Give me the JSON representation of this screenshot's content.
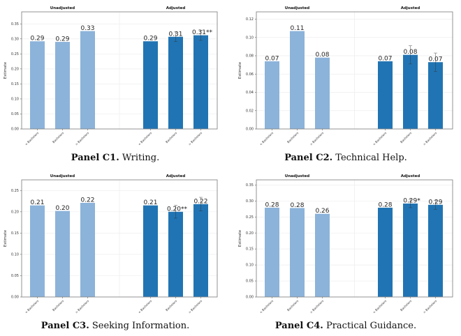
{
  "chart_data": [
    {
      "type": "bar",
      "panel_label": "Panel C1.",
      "panel_title": "Writing.",
      "groups": [
        "Unadjusted",
        "Adjusted"
      ],
      "categories": [
        "< Bachelors",
        "Bachelors",
        "> Bachelors"
      ],
      "ylabel": "Estimate",
      "ylim": [
        0,
        0.39
      ],
      "yticks": [
        "0.00",
        "0.05",
        "0.10",
        "0.15",
        "0.20",
        "0.25",
        "0.30",
        "0.35"
      ],
      "ytick_values": [
        0,
        0.05,
        0.1,
        0.15,
        0.2,
        0.25,
        0.3,
        0.35
      ],
      "series": [
        {
          "name": "Unadjusted",
          "values": [
            0.292,
            0.29,
            0.326
          ],
          "labels": [
            "0.29",
            "0.29",
            "0.33"
          ],
          "errors": [
            null,
            null,
            null
          ]
        },
        {
          "name": "Adjusted",
          "values": [
            0.292,
            0.307,
            0.312
          ],
          "labels": [
            "0.29",
            "0.31",
            "0.31**"
          ],
          "errors": [
            null,
            0.016,
            0.017
          ]
        }
      ],
      "grid": true
    },
    {
      "type": "bar",
      "panel_label": "Panel C2.",
      "panel_title": "Technical Help.",
      "groups": [
        "Unadjusted",
        "Adjusted"
      ],
      "categories": [
        "< Bachelors",
        "Bachelors",
        "> Bachelors"
      ],
      "ylabel": "Estimate",
      "ylim": [
        0,
        0.128
      ],
      "yticks": [
        "0.00",
        "0.02",
        "0.04",
        "0.06",
        "0.08",
        "0.10",
        "0.12"
      ],
      "ytick_values": [
        0,
        0.02,
        0.04,
        0.06,
        0.08,
        0.1,
        0.12
      ],
      "series": [
        {
          "name": "Unadjusted",
          "values": [
            0.074,
            0.107,
            0.078
          ],
          "labels": [
            "0.07",
            "0.11",
            "0.08"
          ],
          "errors": [
            null,
            null,
            null
          ]
        },
        {
          "name": "Adjusted",
          "values": [
            0.074,
            0.081,
            0.073
          ],
          "labels": [
            "0.07",
            "0.08",
            "0.07"
          ],
          "errors": [
            null,
            0.01,
            0.01
          ]
        }
      ],
      "grid": true
    },
    {
      "type": "bar",
      "panel_label": "Panel C3.",
      "panel_title": "Seeking Information.",
      "groups": [
        "Unadjusted",
        "Adjusted"
      ],
      "categories": [
        "< Bachelors",
        "Bachelors",
        "> Bachelors"
      ],
      "ylabel": "Estimate",
      "ylim": [
        0,
        0.275
      ],
      "yticks": [
        "0.00",
        "0.05",
        "0.10",
        "0.15",
        "0.20",
        "0.25"
      ],
      "ytick_values": [
        0,
        0.05,
        0.1,
        0.15,
        0.2,
        0.25
      ],
      "series": [
        {
          "name": "Unadjusted",
          "values": [
            0.215,
            0.202,
            0.221
          ],
          "labels": [
            "0.21",
            "0.20",
            "0.22"
          ],
          "errors": [
            null,
            null,
            null
          ]
        },
        {
          "name": "Adjusted",
          "values": [
            0.215,
            0.2,
            0.218
          ],
          "labels": [
            "0.21",
            "0.20**",
            "0.22"
          ],
          "errors": [
            null,
            0.015,
            0.016
          ]
        }
      ],
      "grid": true
    },
    {
      "type": "bar",
      "panel_label": "Panel C4.",
      "panel_title": "Practical Guidance.",
      "groups": [
        "Unadjusted",
        "Adjusted"
      ],
      "categories": [
        "< Bachelors",
        "Bachelors",
        "> Bachelors"
      ],
      "ylabel": "Estimate",
      "ylim": [
        0,
        0.366
      ],
      "yticks": [
        "0.00",
        "0.05",
        "0.10",
        "0.15",
        "0.20",
        "0.25",
        "0.30",
        "0.35"
      ],
      "ytick_values": [
        0,
        0.05,
        0.1,
        0.15,
        0.2,
        0.25,
        0.3,
        0.35
      ],
      "series": [
        {
          "name": "Unadjusted",
          "values": [
            0.279,
            0.278,
            0.26
          ],
          "labels": [
            "0.28",
            "0.28",
            "0.26"
          ],
          "errors": [
            null,
            null,
            null
          ]
        },
        {
          "name": "Adjusted",
          "values": [
            0.279,
            0.292,
            0.288
          ],
          "labels": [
            "0.28",
            "0.29*",
            "0.29"
          ],
          "errors": [
            null,
            0.013,
            0.014
          ]
        }
      ],
      "grid": true
    }
  ],
  "colors": {
    "unadjusted": "#8cb3da",
    "adjusted": "#2174b3",
    "error_bar": "#333333",
    "frame": "#888888",
    "grid": "#eeeeee"
  }
}
